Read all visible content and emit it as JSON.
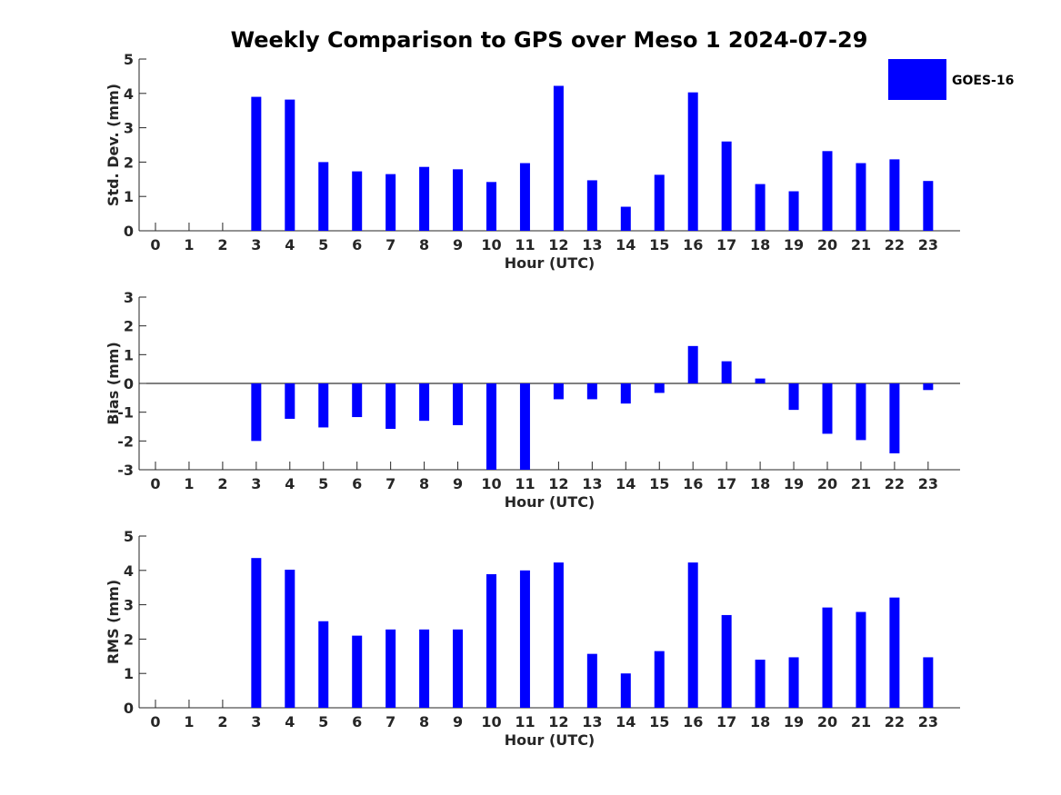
{
  "title": "Weekly Comparison to GPS over Meso 1 2024-07-29",
  "legend": {
    "label": "GOES-16",
    "color": "#0000ff"
  },
  "bar_color": "#0000ff",
  "chart_data": [
    {
      "type": "bar",
      "name": "std-dev",
      "xlabel": "Hour (UTC)",
      "ylabel": "Std. Dev. (mm)",
      "ylim": [
        0,
        5
      ],
      "yticks": [
        "0",
        "1",
        "2",
        "3",
        "4",
        "5"
      ],
      "categories": [
        "0",
        "1",
        "2",
        "3",
        "4",
        "5",
        "6",
        "7",
        "8",
        "9",
        "10",
        "11",
        "12",
        "13",
        "14",
        "15",
        "16",
        "17",
        "18",
        "19",
        "20",
        "21",
        "22",
        "23"
      ],
      "values": [
        null,
        null,
        null,
        3.9,
        3.82,
        2.0,
        1.73,
        1.65,
        1.86,
        1.79,
        1.42,
        1.97,
        4.22,
        1.47,
        0.7,
        1.63,
        4.03,
        2.6,
        1.36,
        1.15,
        2.32,
        1.97,
        2.08,
        1.45
      ]
    },
    {
      "type": "bar",
      "name": "bias",
      "xlabel": "Hour (UTC)",
      "ylabel": "Bias (mm)",
      "ylim": [
        -3,
        3
      ],
      "yticks": [
        "-3",
        "-2",
        "-1",
        "0",
        "1",
        "2",
        "3"
      ],
      "categories": [
        "0",
        "1",
        "2",
        "3",
        "4",
        "5",
        "6",
        "7",
        "8",
        "9",
        "10",
        "11",
        "12",
        "13",
        "14",
        "15",
        "16",
        "17",
        "18",
        "19",
        "20",
        "21",
        "22",
        "23"
      ],
      "values": [
        null,
        null,
        null,
        -2.0,
        -1.23,
        -1.53,
        -1.17,
        -1.58,
        -1.3,
        -1.45,
        -3.0,
        -3.0,
        -0.55,
        -0.55,
        -0.7,
        -0.33,
        1.3,
        0.77,
        0.17,
        -0.92,
        -1.75,
        -1.97,
        -2.43,
        -0.23
      ]
    },
    {
      "type": "bar",
      "name": "rms",
      "xlabel": "Hour (UTC)",
      "ylabel": "RMS (mm)",
      "ylim": [
        0,
        5
      ],
      "yticks": [
        "0",
        "1",
        "2",
        "3",
        "4",
        "5"
      ],
      "categories": [
        "0",
        "1",
        "2",
        "3",
        "4",
        "5",
        "6",
        "7",
        "8",
        "9",
        "10",
        "11",
        "12",
        "13",
        "14",
        "15",
        "16",
        "17",
        "18",
        "19",
        "20",
        "21",
        "22",
        "23"
      ],
      "values": [
        null,
        null,
        null,
        4.36,
        4.02,
        2.52,
        2.1,
        2.28,
        2.28,
        2.28,
        3.89,
        4.0,
        4.23,
        1.57,
        1.0,
        1.65,
        4.23,
        2.7,
        1.4,
        1.47,
        2.92,
        2.79,
        3.21,
        1.47
      ]
    }
  ]
}
